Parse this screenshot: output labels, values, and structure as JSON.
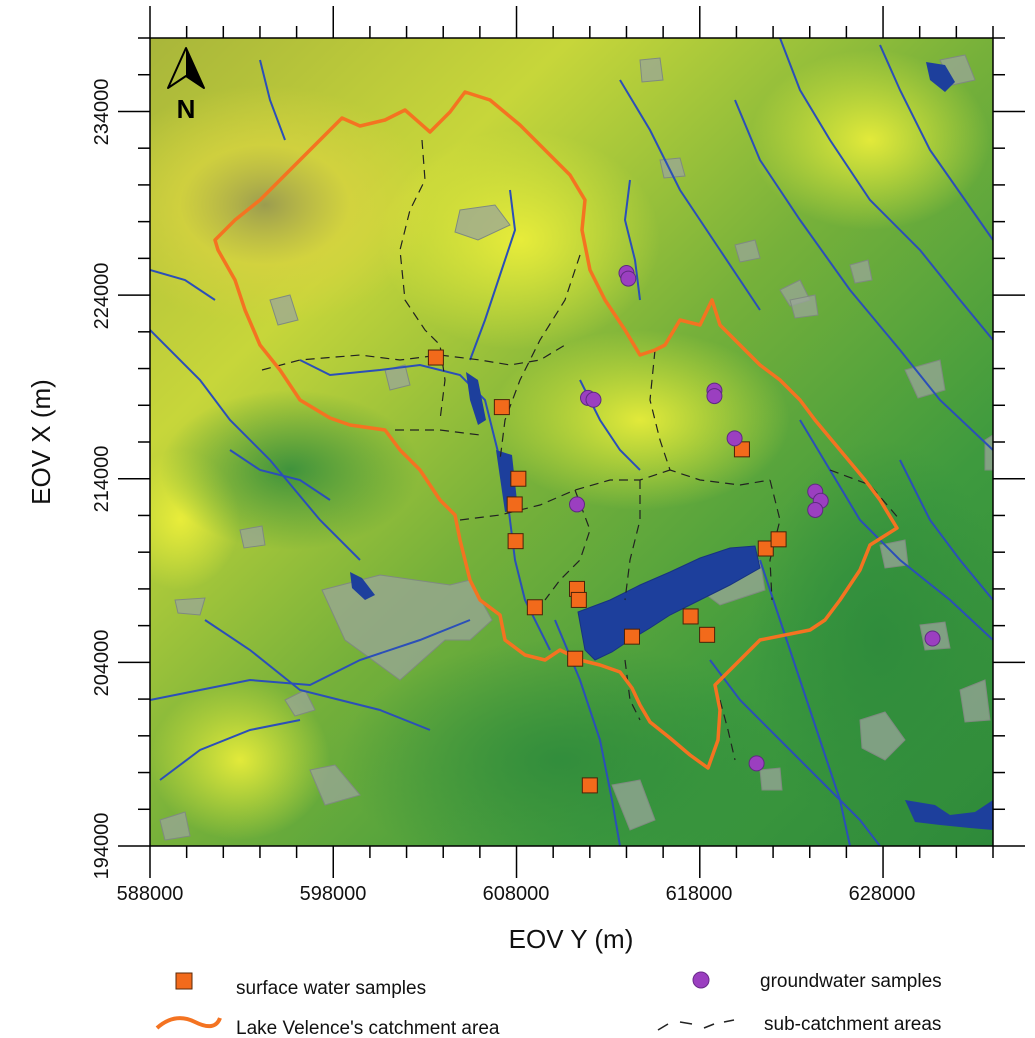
{
  "map": {
    "north_label": "N",
    "x_axis_title": "EOV Y (m)",
    "y_axis_title": "EOV X (m)",
    "x_ticks": [
      "588000",
      "598000",
      "608000",
      "618000",
      "628000"
    ],
    "y_ticks": [
      "234000",
      "224000",
      "214000",
      "204000",
      "194000"
    ],
    "colors": {
      "catchment": "#f47321",
      "lake": "#1d3f9c",
      "stream": "#2b4fb8",
      "surface_sample": "#f26a1b",
      "groundwater_sample": "#9b3fc0",
      "settlement": "#9aa59a"
    }
  },
  "legend": {
    "surface_water": "surface water samples",
    "groundwater": "groundwater samples",
    "catchment": "Lake Velence's catchment area",
    "subcatchment": "sub-catchment areas"
  },
  "chart_data": {
    "type": "scatter",
    "xlabel": "EOV Y (m)",
    "ylabel": "EOV X (m)",
    "xlim": [
      588000,
      634000
    ],
    "ylim": [
      194000,
      238000
    ],
    "series": [
      {
        "name": "surface water samples",
        "marker": "square",
        "points": [
          [
            603600,
            220600
          ],
          [
            607200,
            217900
          ],
          [
            608100,
            214000
          ],
          [
            607900,
            212600
          ],
          [
            607950,
            210600
          ],
          [
            609000,
            207000
          ],
          [
            611300,
            208000
          ],
          [
            611400,
            207400
          ],
          [
            611200,
            204200
          ],
          [
            614300,
            205400
          ],
          [
            617500,
            206500
          ],
          [
            618400,
            205500
          ],
          [
            621600,
            210200
          ],
          [
            622300,
            210700
          ],
          [
            620300,
            215600
          ],
          [
            612000,
            197300
          ]
        ]
      },
      {
        "name": "groundwater samples",
        "marker": "circle",
        "points": [
          [
            614000,
            225200
          ],
          [
            614100,
            224900
          ],
          [
            611900,
            218400
          ],
          [
            612200,
            218300
          ],
          [
            618800,
            218800
          ],
          [
            618800,
            218500
          ],
          [
            619900,
            216200
          ],
          [
            611300,
            212600
          ],
          [
            624300,
            213300
          ],
          [
            624600,
            212800
          ],
          [
            624300,
            212300
          ],
          [
            630700,
            205300
          ],
          [
            621100,
            198500
          ]
        ]
      }
    ]
  }
}
